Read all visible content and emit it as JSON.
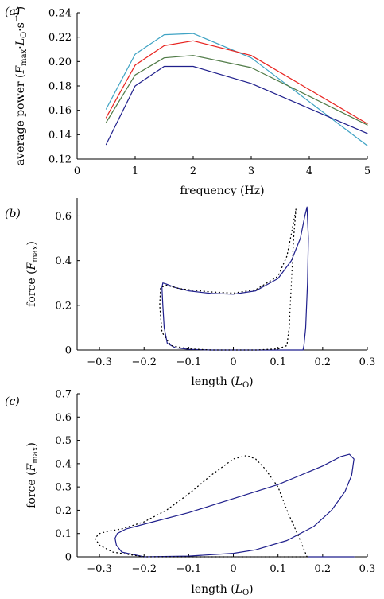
{
  "chart_data": [
    {
      "panel_label": "(a)",
      "type": "line",
      "xlabel": "frequency (Hz)",
      "ylabel": "average power (Fmax·LO·s−1)",
      "ylabel_parts": {
        "base": "average power (",
        "f": "F",
        "fsub": "max",
        "dot1": "·",
        "l": "L",
        "lsub": "O",
        "dot2": "·s",
        "sup": "−1",
        "close": ")"
      },
      "xlim": [
        0,
        5
      ],
      "ylim": [
        0.12,
        0.24
      ],
      "xticks": [
        0,
        1,
        2,
        3,
        4,
        5
      ],
      "yticks": [
        0.12,
        0.14,
        0.16,
        0.18,
        0.2,
        0.22,
        0.24
      ],
      "xtick_labels": [
        "0",
        "1",
        "2",
        "3",
        "4",
        "5"
      ],
      "ytick_labels": [
        "0.12",
        "0.14",
        "0.16",
        "0.18",
        "0.20",
        "0.22",
        "0.24"
      ],
      "x": [
        0.5,
        1,
        1.5,
        2,
        3,
        5
      ],
      "series": [
        {
          "color": "#3fa3c4",
          "values": [
            0.161,
            0.206,
            0.222,
            0.223,
            0.203,
            0.131
          ]
        },
        {
          "color": "#e8231f",
          "values": [
            0.154,
            0.197,
            0.213,
            0.217,
            0.205,
            0.149
          ]
        },
        {
          "color": "#4f7a46",
          "values": [
            0.15,
            0.189,
            0.203,
            0.205,
            0.195,
            0.148
          ]
        },
        {
          "color": "#1f1f8c",
          "values": [
            0.132,
            0.18,
            0.196,
            0.196,
            0.182,
            0.141
          ]
        }
      ]
    },
    {
      "panel_label": "(b)",
      "type": "line",
      "xlabel": "length (LO)",
      "xlabel_parts": {
        "base": "length (",
        "l": "L",
        "lsub": "O",
        "close": ")"
      },
      "ylabel": "force (Fmax)",
      "ylabel_parts": {
        "base": "force (",
        "f": "F",
        "fsub": "max",
        "close": ")"
      },
      "xlim": [
        -0.35,
        0.3
      ],
      "ylim": [
        0,
        0.68
      ],
      "xticks": [
        -0.3,
        -0.2,
        -0.1,
        0,
        0.1,
        0.2,
        0.3
      ],
      "yticks": [
        0,
        0.2,
        0.4,
        0.6
      ],
      "xtick_labels": [
        "−0.3",
        "−0.2",
        "−0.1",
        "0",
        "0.1",
        "0.2",
        "0.3"
      ],
      "ytick_labels": [
        "0",
        "0.2",
        "0.4",
        "0.6"
      ],
      "series": [
        {
          "style": "solid",
          "color": "#1f1f8c",
          "x": [
            0.165,
            0.168,
            0.166,
            0.162,
            0.158,
            0.156,
            0.155,
            0.152,
            0.14,
            0.1,
            0.05,
            0.0,
            -0.05,
            -0.1,
            -0.13,
            -0.148,
            -0.155,
            -0.158,
            -0.16,
            -0.158,
            -0.15,
            -0.13,
            -0.1,
            -0.05,
            0.0,
            0.05,
            0.1,
            0.13,
            0.15,
            0.16,
            0.165
          ],
          "y": [
            0.64,
            0.5,
            0.3,
            0.1,
            0.02,
            0.0,
            0.0,
            0.0,
            0.0,
            0.0,
            0.0,
            0.0,
            0.0,
            0.003,
            0.01,
            0.03,
            0.1,
            0.2,
            0.28,
            0.3,
            0.295,
            0.28,
            0.265,
            0.253,
            0.25,
            0.265,
            0.32,
            0.4,
            0.5,
            0.6,
            0.64
          ]
        },
        {
          "style": "dotted",
          "color": "#000000",
          "x": [
            0.14,
            0.135,
            0.13,
            0.125,
            0.12,
            0.1,
            0.05,
            0.0,
            -0.05,
            -0.1,
            -0.14,
            -0.16,
            -0.165,
            -0.163,
            -0.15,
            -0.12,
            -0.1,
            -0.05,
            0.0,
            0.05,
            0.1,
            0.12,
            0.13,
            0.14
          ],
          "y": [
            0.63,
            0.5,
            0.3,
            0.1,
            0.02,
            0.005,
            0.0,
            0.0,
            0.0,
            0.005,
            0.02,
            0.08,
            0.2,
            0.28,
            0.29,
            0.275,
            0.27,
            0.26,
            0.255,
            0.27,
            0.33,
            0.42,
            0.52,
            0.63
          ]
        }
      ]
    },
    {
      "panel_label": "(c)",
      "type": "line",
      "xlabel": "length (LO)",
      "xlabel_parts": {
        "base": "length (",
        "l": "L",
        "lsub": "O",
        "close": ")"
      },
      "ylabel": "force (Fmax)",
      "ylabel_parts": {
        "base": "force (",
        "f": "F",
        "fsub": "max",
        "close": ")"
      },
      "xlim": [
        -0.35,
        0.3
      ],
      "ylim": [
        0,
        0.7
      ],
      "xticks": [
        -0.3,
        -0.2,
        -0.1,
        0,
        0.1,
        0.2,
        0.3
      ],
      "yticks": [
        0,
        0.1,
        0.2,
        0.3,
        0.4,
        0.5,
        0.6,
        0.7
      ],
      "xtick_labels": [
        "−0.3",
        "−0.2",
        "−0.1",
        "0",
        "0.1",
        "0.2",
        "0.3"
      ],
      "ytick_labels": [
        "0",
        "0.1",
        "0.2",
        "0.3",
        "0.4",
        "0.5",
        "0.6",
        "0.7"
      ],
      "series": [
        {
          "style": "solid",
          "color": "#1f1f8c",
          "x": [
            0.27,
            0.265,
            0.25,
            0.22,
            0.18,
            0.12,
            0.05,
            0.0,
            -0.1,
            -0.2,
            -0.25,
            -0.262,
            -0.265,
            -0.26,
            -0.24,
            -0.2,
            -0.1,
            0.0,
            0.1,
            0.15,
            0.2,
            0.24,
            0.26,
            0.27
          ],
          "y": [
            0.42,
            0.35,
            0.28,
            0.2,
            0.13,
            0.07,
            0.03,
            0.015,
            0.003,
            0.0,
            0.02,
            0.05,
            0.08,
            0.1,
            0.12,
            0.14,
            0.19,
            0.25,
            0.31,
            0.35,
            0.39,
            0.43,
            0.44,
            0.42
          ]
        },
        {
          "style": "solid",
          "color": "#1f1f8c",
          "x": [
            0.168,
            0.175,
            0.2,
            0.25,
            0.27
          ],
          "y": [
            0.0,
            0.0,
            0.0,
            0.0,
            0.0
          ]
        },
        {
          "style": "dotted",
          "color": "#000000",
          "x": [
            0.165,
            0.15,
            0.12,
            0.1,
            0.07,
            0.05,
            0.03,
            0.0,
            -0.05,
            -0.1,
            -0.15,
            -0.2,
            -0.25,
            -0.28,
            -0.3,
            -0.31,
            -0.3,
            -0.27,
            -0.2,
            -0.1,
            0.0,
            0.1,
            0.165
          ],
          "y": [
            0.0,
            0.07,
            0.2,
            0.3,
            0.38,
            0.42,
            0.435,
            0.42,
            0.35,
            0.27,
            0.2,
            0.15,
            0.12,
            0.11,
            0.1,
            0.08,
            0.05,
            0.02,
            0.0,
            0.0,
            0.0,
            0.0,
            0.0
          ]
        }
      ]
    }
  ]
}
